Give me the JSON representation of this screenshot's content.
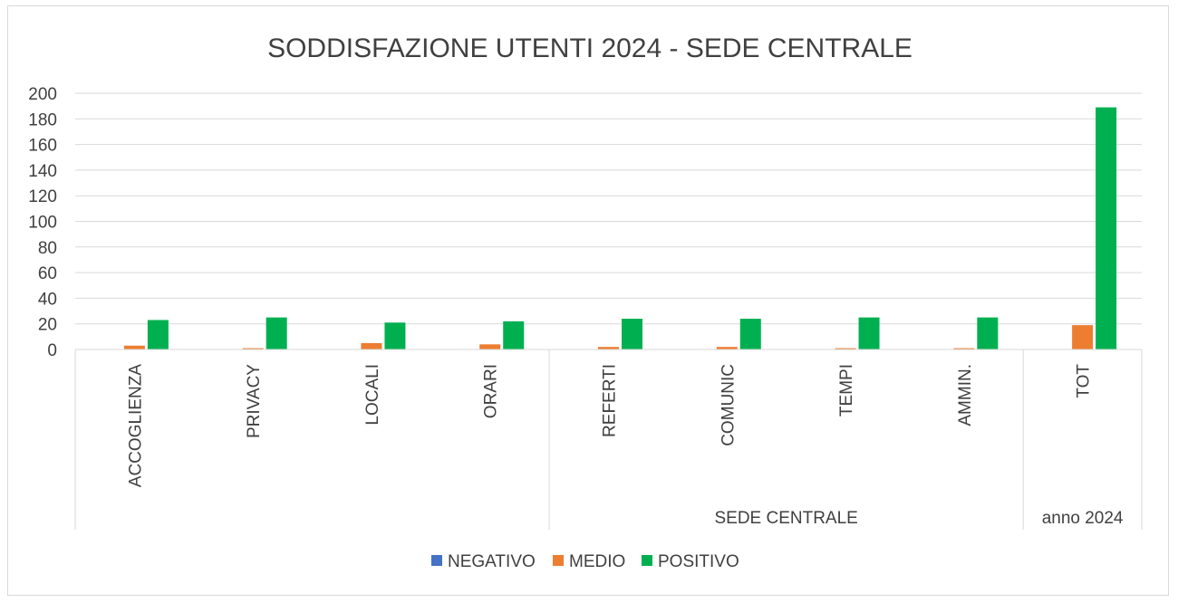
{
  "chart_data": {
    "type": "bar",
    "title": "SODDISFAZIONE UTENTI 2024 - SEDE CENTRALE",
    "categories": [
      "ACCOGLIENZA",
      "PRIVACY",
      "LOCALI",
      "ORARI",
      "REFERTI",
      "COMUNIC",
      "TEMPI",
      "AMMIN.",
      "TOT"
    ],
    "groups": [
      {
        "label": "",
        "categories": [
          "ACCOGLIENZA",
          "PRIVACY",
          "LOCALI",
          "ORARI"
        ]
      },
      {
        "label": "SEDE CENTRALE",
        "categories": [
          "REFERTI",
          "COMUNIC",
          "TEMPI",
          "AMMIN."
        ]
      },
      {
        "label": "anno 2024",
        "categories": [
          "TOT"
        ]
      }
    ],
    "series": [
      {
        "name": "NEGATIVO",
        "color": "#4472c4",
        "values": [
          0,
          0,
          0,
          0,
          0,
          0,
          0,
          0,
          0
        ]
      },
      {
        "name": "MEDIO",
        "color": "#ed7d31",
        "values": [
          3,
          1,
          5,
          4,
          2,
          2,
          1,
          1,
          19
        ]
      },
      {
        "name": "POSITIVO",
        "color": "#00b050",
        "values": [
          23,
          25,
          21,
          22,
          24,
          24,
          25,
          25,
          189
        ]
      }
    ],
    "ylim": [
      0,
      200
    ],
    "yticks": [
      "0",
      "20",
      "40",
      "60",
      "80",
      "100",
      "120",
      "140",
      "160",
      "180",
      "200"
    ],
    "grid": true,
    "legend_position": "bottom",
    "xlabel": "",
    "ylabel": ""
  }
}
